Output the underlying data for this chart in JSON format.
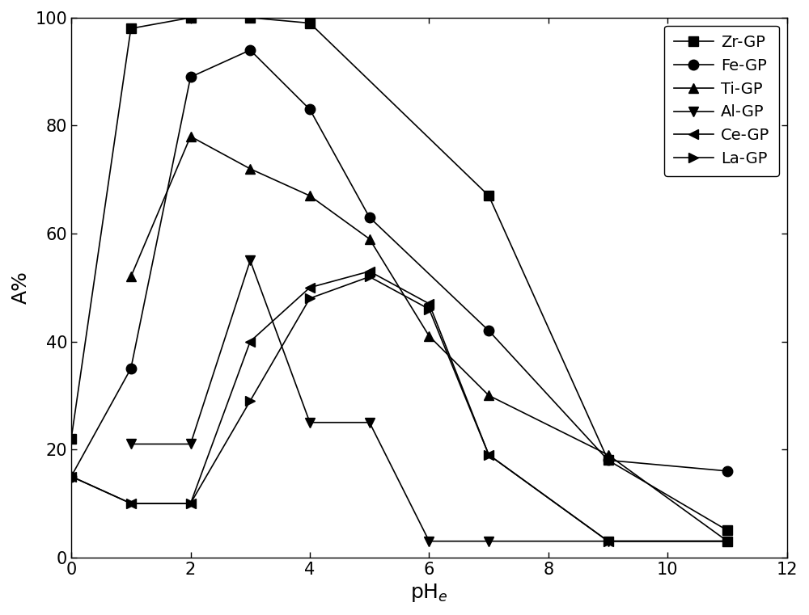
{
  "series": {
    "Zr-GP": {
      "x": [
        0,
        1,
        2,
        3,
        4,
        7,
        9,
        11
      ],
      "y": [
        22,
        98,
        100,
        100,
        99,
        67,
        18,
        5
      ],
      "marker": "s",
      "label": "Zr-GP"
    },
    "Fe-GP": {
      "x": [
        0,
        1,
        2,
        3,
        4,
        5,
        7,
        9,
        11
      ],
      "y": [
        15,
        35,
        89,
        94,
        83,
        63,
        42,
        18,
        16
      ],
      "marker": "o",
      "label": "Fe-GP"
    },
    "Ti-GP": {
      "x": [
        1,
        2,
        3,
        4,
        5,
        6,
        7,
        9,
        11
      ],
      "y": [
        52,
        78,
        72,
        67,
        59,
        41,
        30,
        19,
        3
      ],
      "marker": "^",
      "label": "Ti-GP"
    },
    "Al-GP": {
      "x": [
        1,
        2,
        3,
        4,
        5,
        6,
        7,
        9,
        11
      ],
      "y": [
        21,
        21,
        55,
        25,
        25,
        3,
        3,
        3,
        3
      ],
      "marker": "v",
      "label": "Al-GP"
    },
    "Ce-GP": {
      "x": [
        0,
        1,
        2,
        3,
        4,
        5,
        6,
        7,
        9,
        11
      ],
      "y": [
        15,
        10,
        10,
        40,
        50,
        53,
        47,
        19,
        3,
        3
      ],
      "marker": "<",
      "label": "Ce-GP"
    },
    "La-GP": {
      "x": [
        0,
        1,
        2,
        3,
        4,
        5,
        6,
        7,
        9,
        11
      ],
      "y": [
        15,
        10,
        10,
        29,
        48,
        52,
        46,
        19,
        3,
        3
      ],
      "marker": ">",
      "label": "La-GP"
    }
  },
  "xlabel": "pH$_e$",
  "ylabel": "A%",
  "xlim": [
    0,
    12
  ],
  "ylim": [
    0,
    100
  ],
  "xticks": [
    0,
    2,
    4,
    6,
    8,
    10,
    12
  ],
  "yticks": [
    0,
    20,
    40,
    60,
    80,
    100
  ],
  "color": "#000000",
  "linewidth": 1.2,
  "markersize": 9,
  "legend_fontsize": 14,
  "axis_fontsize": 18,
  "tick_fontsize": 15,
  "figure_width": 10.0,
  "figure_height": 7.61
}
